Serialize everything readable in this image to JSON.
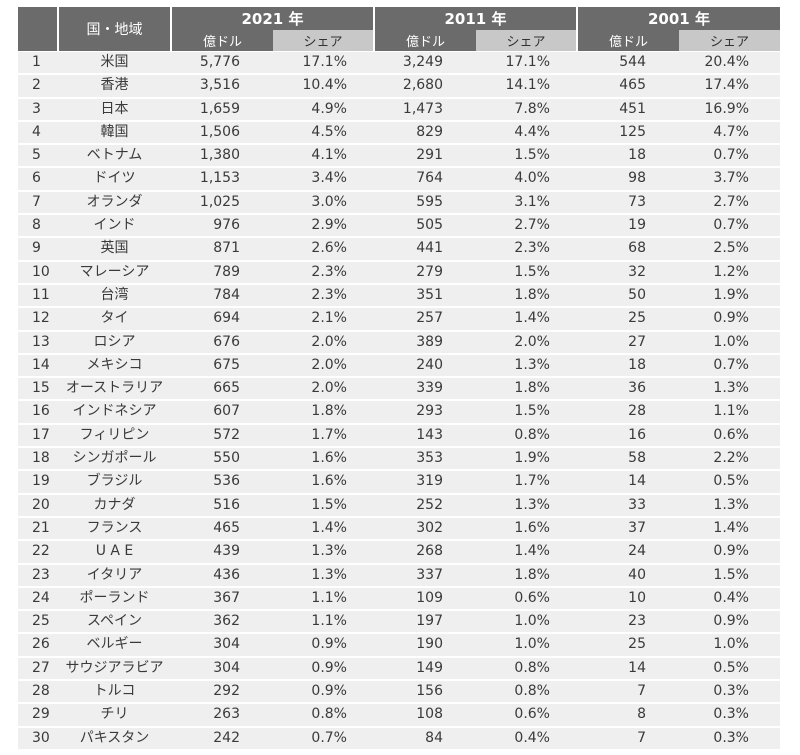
{
  "header": {
    "name_col": "国・地域",
    "groups": [
      {
        "year": "2021 年",
        "usd_label": "億ドル",
        "share_label": "シェア"
      },
      {
        "year": "2011 年",
        "usd_label": "億ドル",
        "share_label": "シェア"
      },
      {
        "year": "2001 年",
        "usd_label": "億ドル",
        "share_label": "シェア"
      }
    ]
  },
  "rows": [
    {
      "rank": "1",
      "name": "米国",
      "v2021": "5,776",
      "s2021": "17.1%",
      "v2011": "3,249",
      "s2011": "17.1%",
      "v2001": "544",
      "s2001": "20.4%"
    },
    {
      "rank": "2",
      "name": "香港",
      "v2021": "3,516",
      "s2021": "10.4%",
      "v2011": "2,680",
      "s2011": "14.1%",
      "v2001": "465",
      "s2001": "17.4%"
    },
    {
      "rank": "3",
      "name": "日本",
      "v2021": "1,659",
      "s2021": "4.9%",
      "v2011": "1,473",
      "s2011": "7.8%",
      "v2001": "451",
      "s2001": "16.9%"
    },
    {
      "rank": "4",
      "name": "韓国",
      "v2021": "1,506",
      "s2021": "4.5%",
      "v2011": "829",
      "s2011": "4.4%",
      "v2001": "125",
      "s2001": "4.7%"
    },
    {
      "rank": "5",
      "name": "ベトナム",
      "v2021": "1,380",
      "s2021": "4.1%",
      "v2011": "291",
      "s2011": "1.5%",
      "v2001": "18",
      "s2001": "0.7%"
    },
    {
      "rank": "6",
      "name": "ドイツ",
      "v2021": "1,153",
      "s2021": "3.4%",
      "v2011": "764",
      "s2011": "4.0%",
      "v2001": "98",
      "s2001": "3.7%"
    },
    {
      "rank": "7",
      "name": "オランダ",
      "v2021": "1,025",
      "s2021": "3.0%",
      "v2011": "595",
      "s2011": "3.1%",
      "v2001": "73",
      "s2001": "2.7%"
    },
    {
      "rank": "8",
      "name": "インド",
      "v2021": "976",
      "s2021": "2.9%",
      "v2011": "505",
      "s2011": "2.7%",
      "v2001": "19",
      "s2001": "0.7%"
    },
    {
      "rank": "9",
      "name": "英国",
      "v2021": "871",
      "s2021": "2.6%",
      "v2011": "441",
      "s2011": "2.3%",
      "v2001": "68",
      "s2001": "2.5%"
    },
    {
      "rank": "10",
      "name": "マレーシア",
      "v2021": "789",
      "s2021": "2.3%",
      "v2011": "279",
      "s2011": "1.5%",
      "v2001": "32",
      "s2001": "1.2%"
    },
    {
      "rank": "11",
      "name": "台湾",
      "v2021": "784",
      "s2021": "2.3%",
      "v2011": "351",
      "s2011": "1.8%",
      "v2001": "50",
      "s2001": "1.9%"
    },
    {
      "rank": "12",
      "name": "タイ",
      "v2021": "694",
      "s2021": "2.1%",
      "v2011": "257",
      "s2011": "1.4%",
      "v2001": "25",
      "s2001": "0.9%"
    },
    {
      "rank": "13",
      "name": "ロシア",
      "v2021": "676",
      "s2021": "2.0%",
      "v2011": "389",
      "s2011": "2.0%",
      "v2001": "27",
      "s2001": "1.0%"
    },
    {
      "rank": "14",
      "name": "メキシコ",
      "v2021": "675",
      "s2021": "2.0%",
      "v2011": "240",
      "s2011": "1.3%",
      "v2001": "18",
      "s2001": "0.7%"
    },
    {
      "rank": "15",
      "name": "オーストラリア",
      "v2021": "665",
      "s2021": "2.0%",
      "v2011": "339",
      "s2011": "1.8%",
      "v2001": "36",
      "s2001": "1.3%"
    },
    {
      "rank": "16",
      "name": "インドネシア",
      "v2021": "607",
      "s2021": "1.8%",
      "v2011": "293",
      "s2011": "1.5%",
      "v2001": "28",
      "s2001": "1.1%"
    },
    {
      "rank": "17",
      "name": "フィリピン",
      "v2021": "572",
      "s2021": "1.7%",
      "v2011": "143",
      "s2011": "0.8%",
      "v2001": "16",
      "s2001": "0.6%"
    },
    {
      "rank": "18",
      "name": "シンガポール",
      "v2021": "550",
      "s2021": "1.6%",
      "v2011": "353",
      "s2011": "1.9%",
      "v2001": "58",
      "s2001": "2.2%"
    },
    {
      "rank": "19",
      "name": "ブラジル",
      "v2021": "536",
      "s2021": "1.6%",
      "v2011": "319",
      "s2011": "1.7%",
      "v2001": "14",
      "s2001": "0.5%"
    },
    {
      "rank": "20",
      "name": "カナダ",
      "v2021": "516",
      "s2021": "1.5%",
      "v2011": "252",
      "s2011": "1.3%",
      "v2001": "33",
      "s2001": "1.3%"
    },
    {
      "rank": "21",
      "name": "フランス",
      "v2021": "465",
      "s2021": "1.4%",
      "v2011": "302",
      "s2011": "1.6%",
      "v2001": "37",
      "s2001": "1.4%"
    },
    {
      "rank": "22",
      "name": "U A E",
      "v2021": "439",
      "s2021": "1.3%",
      "v2011": "268",
      "s2011": "1.4%",
      "v2001": "24",
      "s2001": "0.9%"
    },
    {
      "rank": "23",
      "name": "イタリア",
      "v2021": "436",
      "s2021": "1.3%",
      "v2011": "337",
      "s2011": "1.8%",
      "v2001": "40",
      "s2001": "1.5%"
    },
    {
      "rank": "24",
      "name": "ポーランド",
      "v2021": "367",
      "s2021": "1.1%",
      "v2011": "109",
      "s2011": "0.6%",
      "v2001": "10",
      "s2001": "0.4%"
    },
    {
      "rank": "25",
      "name": "スペイン",
      "v2021": "362",
      "s2021": "1.1%",
      "v2011": "197",
      "s2011": "1.0%",
      "v2001": "23",
      "s2001": "0.9%"
    },
    {
      "rank": "26",
      "name": "ベルギー",
      "v2021": "304",
      "s2021": "0.9%",
      "v2011": "190",
      "s2011": "1.0%",
      "v2001": "25",
      "s2001": "1.0%"
    },
    {
      "rank": "27",
      "name": "サウジアラビア",
      "v2021": "304",
      "s2021": "0.9%",
      "v2011": "149",
      "s2011": "0.8%",
      "v2001": "14",
      "s2001": "0.5%"
    },
    {
      "rank": "28",
      "name": "トルコ",
      "v2021": "292",
      "s2021": "0.9%",
      "v2011": "156",
      "s2011": "0.8%",
      "v2001": "7",
      "s2001": "0.3%"
    },
    {
      "rank": "29",
      "name": "チリ",
      "v2021": "263",
      "s2021": "0.8%",
      "v2011": "108",
      "s2011": "0.6%",
      "v2001": "8",
      "s2001": "0.3%"
    },
    {
      "rank": "30",
      "name": "パキスタン",
      "v2021": "242",
      "s2021": "0.7%",
      "v2011": "84",
      "s2011": "0.4%",
      "v2001": "7",
      "s2001": "0.3%"
    }
  ]
}
